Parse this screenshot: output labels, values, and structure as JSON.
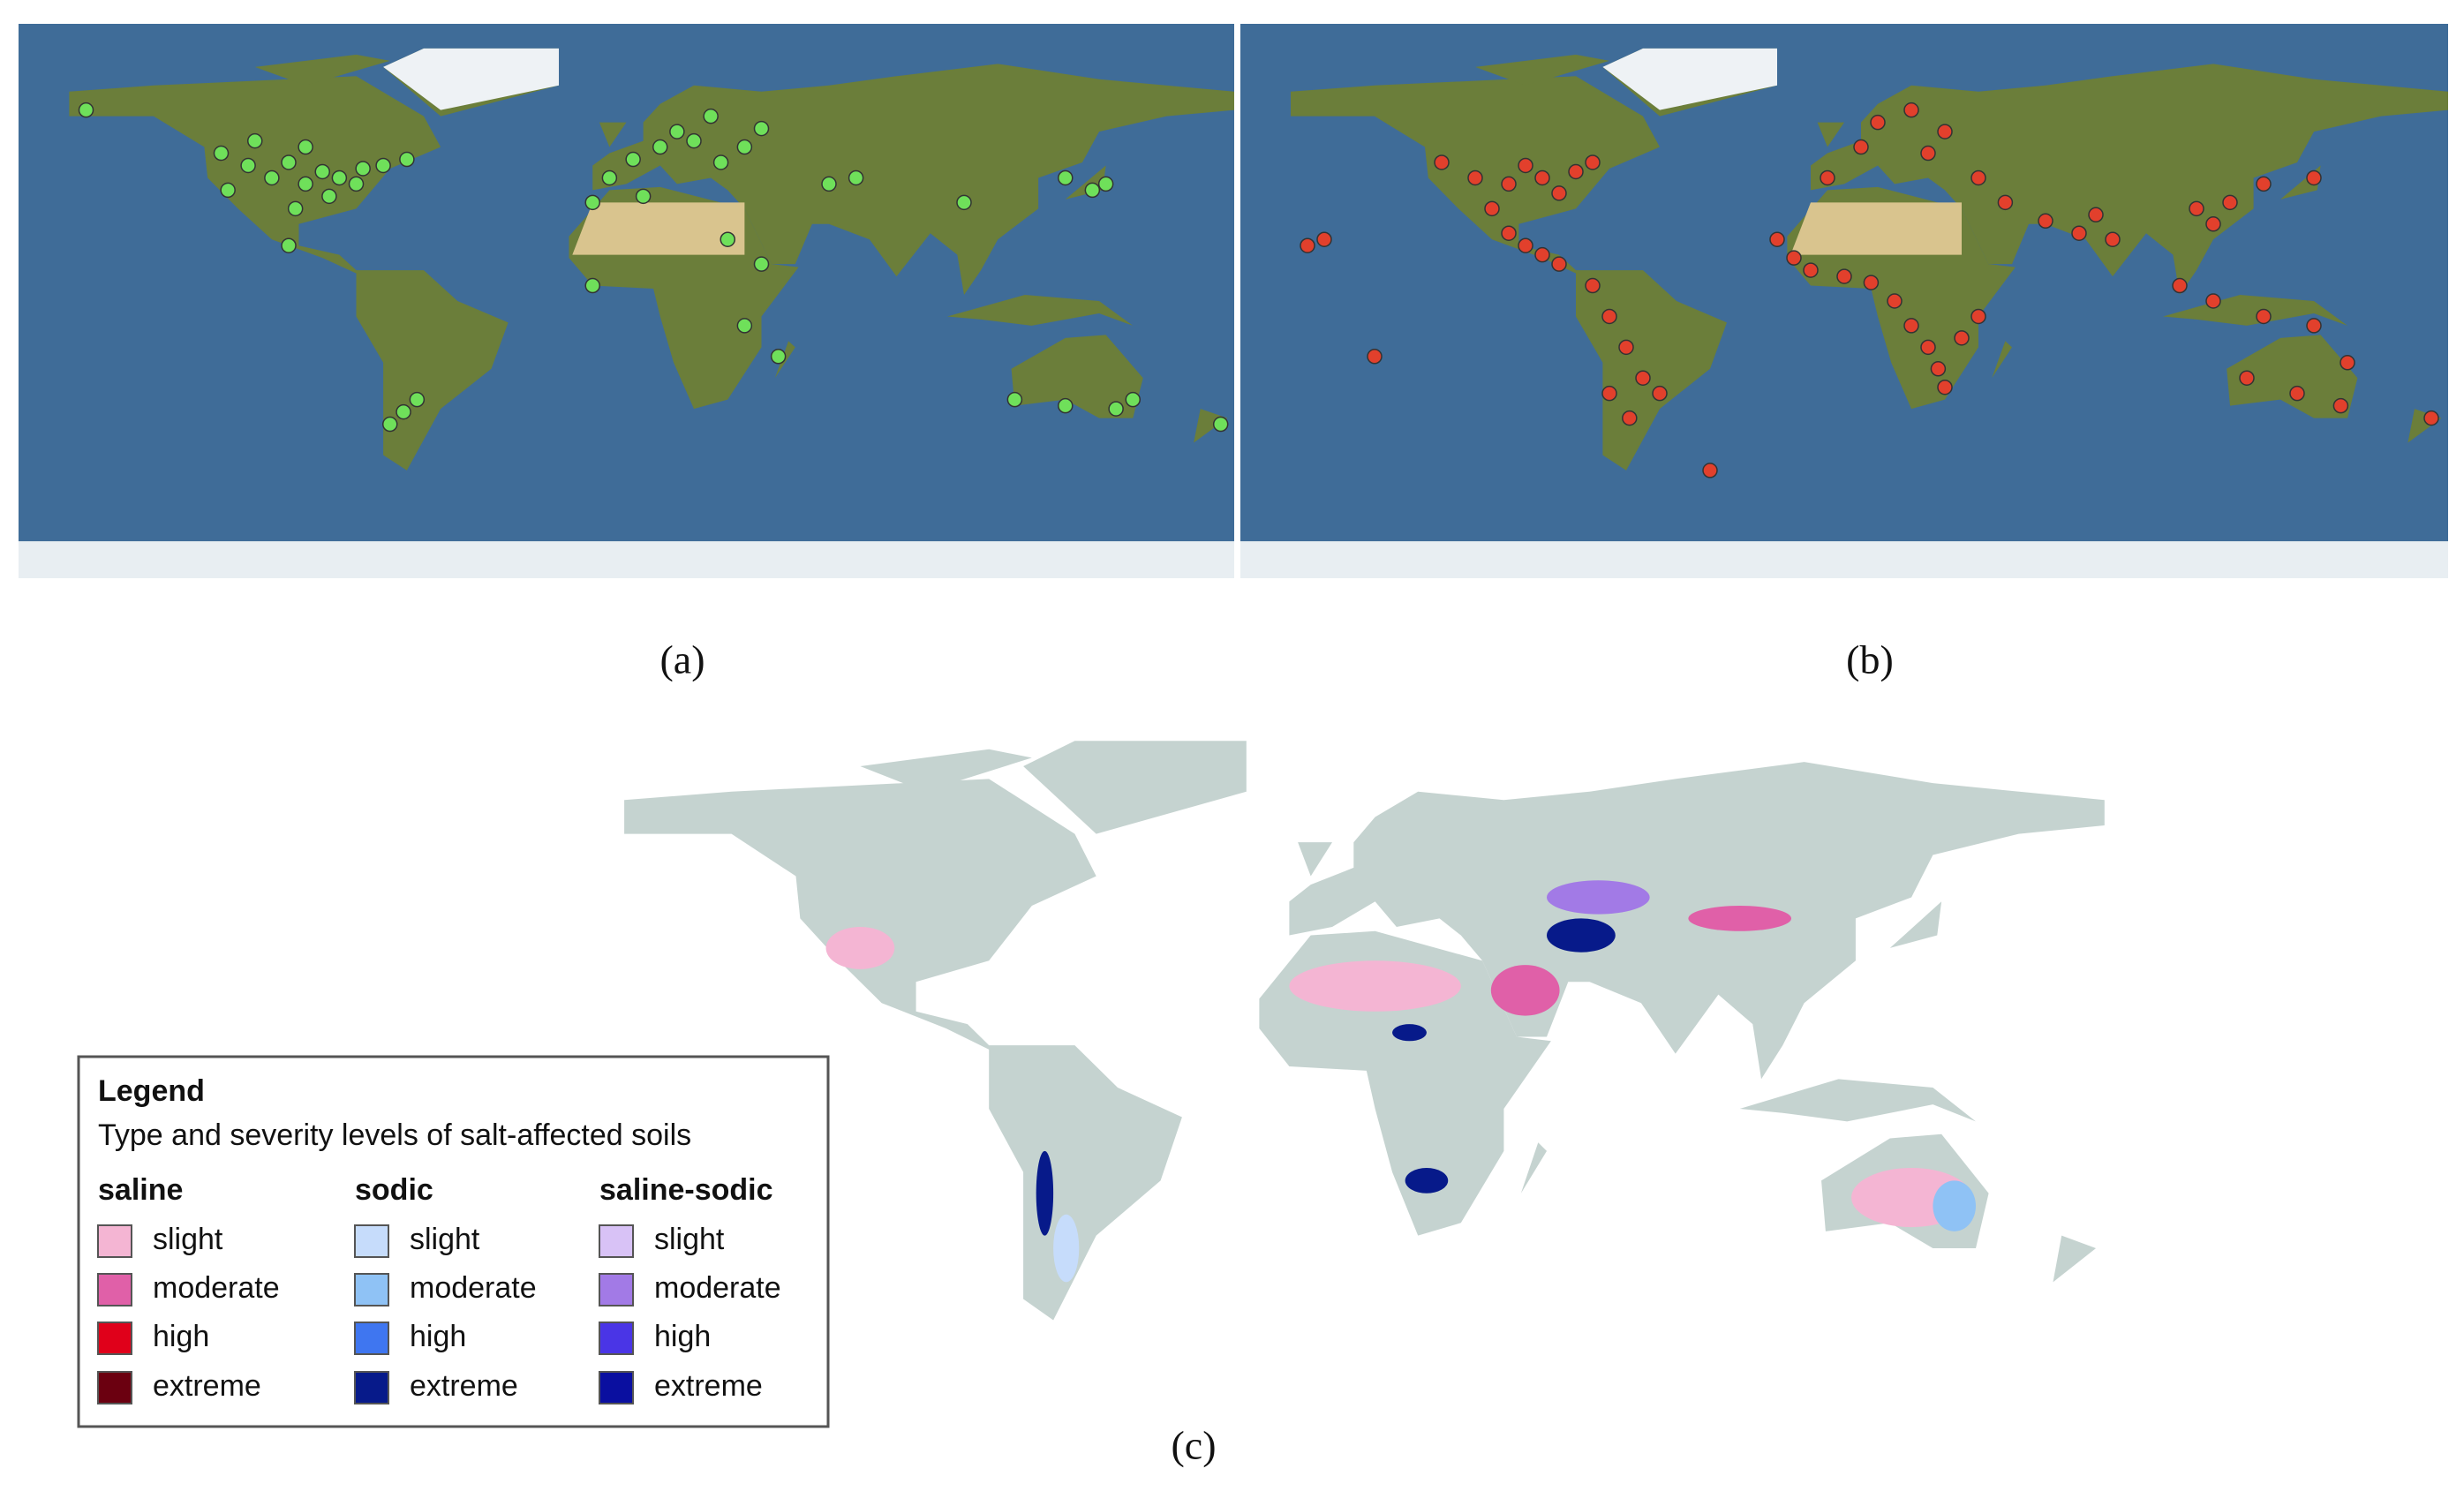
{
  "panels": [
    {
      "label": "(a)"
    },
    {
      "label": "(b)"
    },
    {
      "label": "(c)"
    }
  ],
  "legend": {
    "title": "Legend",
    "subtitle": "Type and severity levels of salt-affected soils",
    "groups": [
      {
        "name": "saline",
        "items": [
          {
            "label": "slight",
            "color": "#f4b5d3"
          },
          {
            "label": "moderate",
            "color": "#e060a8"
          },
          {
            "label": "high",
            "color": "#e0001a"
          },
          {
            "label": "extreme",
            "color": "#6b0010"
          }
        ]
      },
      {
        "name": "sodic",
        "items": [
          {
            "label": "slight",
            "color": "#c6dcfb"
          },
          {
            "label": "moderate",
            "color": "#8fc2f5"
          },
          {
            "label": "high",
            "color": "#3f76f0"
          },
          {
            "label": "extreme",
            "color": "#071a8a"
          }
        ]
      },
      {
        "name": "saline-sodic",
        "items": [
          {
            "label": "slight",
            "color": "#d8c2f6"
          },
          {
            "label": "moderate",
            "color": "#a27ae6"
          },
          {
            "label": "high",
            "color": "#4a35e6"
          },
          {
            "label": "extreme",
            "color": "#0a0fa0"
          }
        ]
      }
    ]
  }
}
